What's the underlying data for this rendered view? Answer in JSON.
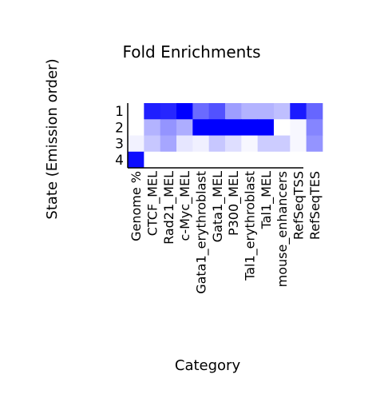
{
  "chart_data": {
    "type": "heatmap",
    "title": "Fold Enrichments",
    "xlabel": "Category",
    "ylabel": "State (Emission order)",
    "columns": [
      "Genome %",
      "CTCF_MEL",
      "Rad21_MEL",
      "c-Myc_MEL",
      "Gata1_erythroblast",
      "Gata1_MEL",
      "P300_MEL",
      "Tal1_erythroblast",
      "Tal1_MEL",
      "mouse_enhancers",
      "RefSeqTSS",
      "RefSeqTES"
    ],
    "rows": [
      "1",
      "2",
      "3",
      "4"
    ],
    "color_scale": {
      "low": "#ffffff",
      "high": "#0000ff"
    },
    "values": [
      [
        0.0,
        0.88,
        0.85,
        1.0,
        0.58,
        0.68,
        0.38,
        0.3,
        0.3,
        0.25,
        0.9,
        0.6
      ],
      [
        0.0,
        0.3,
        0.42,
        0.32,
        1.0,
        1.0,
        1.0,
        1.0,
        1.0,
        0.0,
        0.03,
        0.48
      ],
      [
        0.05,
        0.22,
        0.35,
        0.1,
        0.06,
        0.22,
        0.13,
        0.03,
        0.2,
        0.2,
        0.03,
        0.42
      ],
      [
        0.95,
        0.0,
        0.0,
        0.0,
        0.0,
        0.0,
        0.0,
        0.0,
        0.0,
        0.0,
        0.0,
        0.0
      ]
    ]
  }
}
